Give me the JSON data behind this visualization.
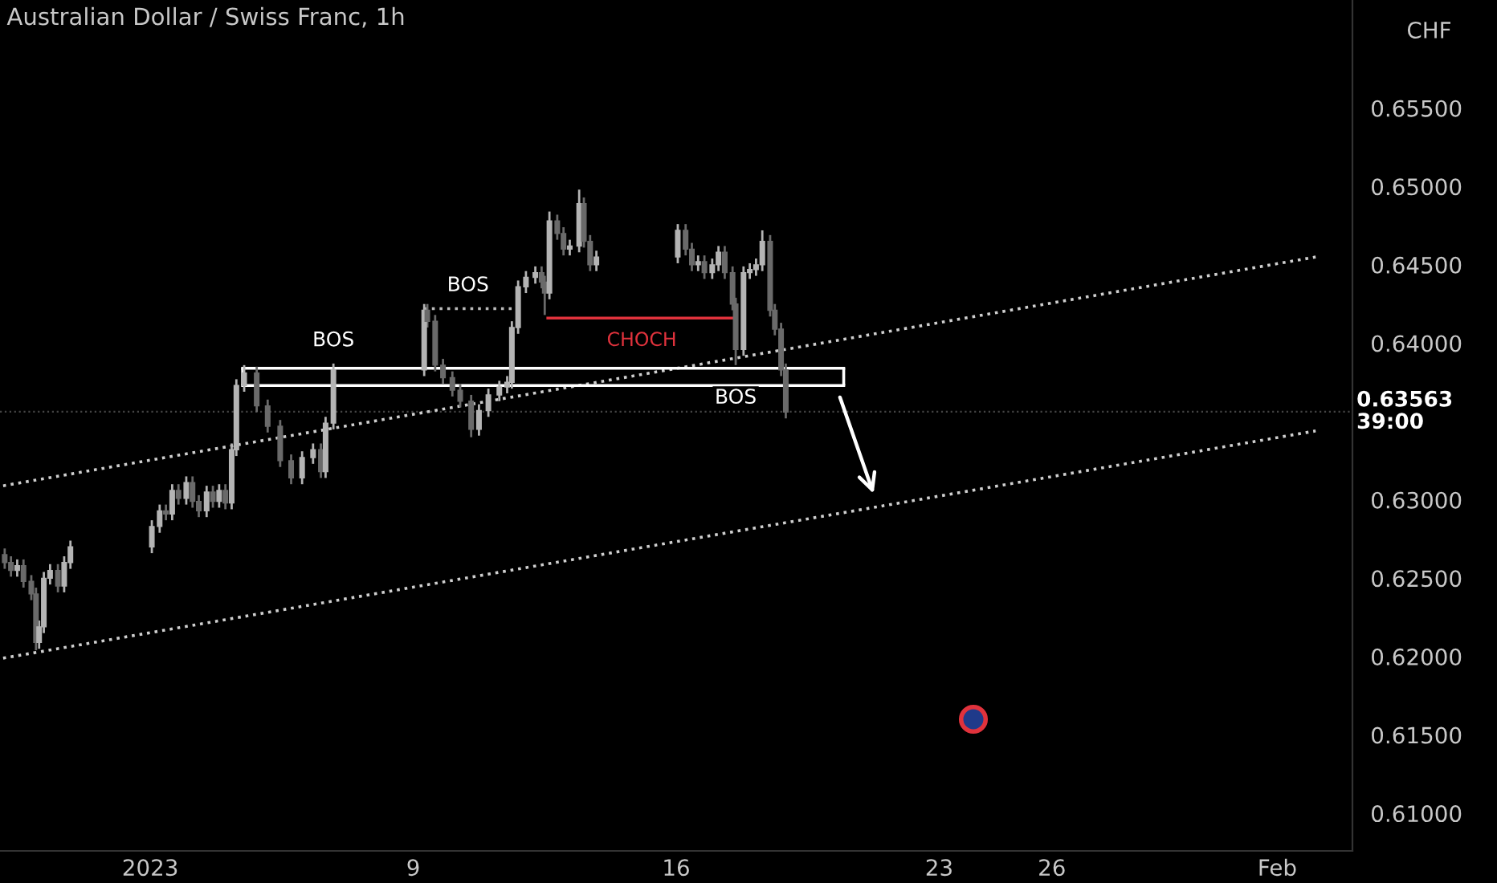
{
  "chart_data": {
    "type": "candlestick",
    "title": "Australian Dollar / Swiss Franc, 1h",
    "ylabel": "CHF",
    "x": [
      "2022-12-29T03:00",
      "2022-12-29T07:00",
      "2022-12-29T11:00",
      "2022-12-29T15:00",
      "2022-12-29T20:00",
      "2022-12-29T23:00",
      "2022-12-30T01:00",
      "2022-12-30T04:00",
      "2022-12-30T08:00",
      "2022-12-30T13:00",
      "2022-12-30T17:00",
      "2022-12-30T21:00",
      "2023-01-02T01:00",
      "2023-01-02T06:00",
      "2023-01-02T10:00",
      "2023-01-02T14:00",
      "2023-01-02T18:00",
      "2023-01-02T23:00",
      "2023-01-03T03:00",
      "2023-01-03T07:00",
      "2023-01-03T12:00",
      "2023-01-03T16:00",
      "2023-01-03T20:00",
      "2023-01-04T00:00",
      "2023-01-04T04:00",
      "2023-01-04T07:00",
      "2023-01-04T12:00",
      "2023-01-04T20:00",
      "2023-01-05T03:00",
      "2023-01-05T11:00",
      "2023-01-05T18:00",
      "2023-01-06T01:00",
      "2023-01-06T08:00",
      "2023-01-06T13:00",
      "2023-01-06T16:00",
      "2023-01-06T21:00",
      "2023-01-09T07:00",
      "2023-01-09T09:00",
      "2023-01-09T14:00",
      "2023-01-09T19:00",
      "2023-01-10T01:00",
      "2023-01-10T06:00",
      "2023-01-10T13:00",
      "2023-01-10T18:00",
      "2023-01-11T00:00",
      "2023-01-11T07:00",
      "2023-01-11T12:00",
      "2023-01-11T15:00",
      "2023-01-11T19:00",
      "2023-01-12T00:00",
      "2023-01-12T06:00",
      "2023-01-12T10:00",
      "2023-01-12T12:00",
      "2023-01-12T15:00",
      "2023-01-12T20:00",
      "2023-01-13T00:00",
      "2023-01-13T04:00",
      "2023-01-13T10:00",
      "2023-01-13T13:00",
      "2023-01-13T17:00",
      "2023-01-13T21:00",
      "2023-01-16T01:00",
      "2023-01-16T06:00",
      "2023-01-16T10:00",
      "2023-01-16T14:00",
      "2023-01-16T18:00",
      "2023-01-16T23:00",
      "2023-01-17T03:00",
      "2023-01-17T07:00",
      "2023-01-17T12:00",
      "2023-01-17T14:00",
      "2023-01-17T19:00",
      "2023-01-17T23:00",
      "2023-01-18T03:00",
      "2023-01-18T07:00",
      "2023-01-18T12:00",
      "2023-01-18T15:00",
      "2023-01-18T19:00",
      "2023-01-18T22:00"
    ],
    "ohlc": [
      [
        0.6265,
        0.6269,
        0.6256,
        0.626
      ],
      [
        0.626,
        0.6264,
        0.6251,
        0.6255
      ],
      [
        0.6255,
        0.6262,
        0.6251,
        0.6258
      ],
      [
        0.6258,
        0.6262,
        0.6244,
        0.6248
      ],
      [
        0.6248,
        0.6252,
        0.6236,
        0.624
      ],
      [
        0.624,
        0.6244,
        0.6204,
        0.6209
      ],
      [
        0.6209,
        0.6223,
        0.6205,
        0.6219
      ],
      [
        0.6219,
        0.6254,
        0.6215,
        0.625
      ],
      [
        0.625,
        0.6259,
        0.6246,
        0.6255
      ],
      [
        0.6255,
        0.6259,
        0.6241,
        0.6245
      ],
      [
        0.6245,
        0.6264,
        0.6241,
        0.626
      ],
      [
        0.626,
        0.6274,
        0.6256,
        0.627
      ],
      [
        0.627,
        0.6287,
        0.6266,
        0.6283
      ],
      [
        0.6283,
        0.6297,
        0.6279,
        0.6293
      ],
      [
        0.6293,
        0.6297,
        0.6287,
        0.6291
      ],
      [
        0.6291,
        0.631,
        0.6287,
        0.6306
      ],
      [
        0.6306,
        0.631,
        0.6297,
        0.6301
      ],
      [
        0.6301,
        0.6315,
        0.6297,
        0.6311
      ],
      [
        0.6311,
        0.6315,
        0.6295,
        0.6299
      ],
      [
        0.6299,
        0.6303,
        0.6289,
        0.6293
      ],
      [
        0.6293,
        0.6309,
        0.6289,
        0.6305
      ],
      [
        0.6305,
        0.6309,
        0.6295,
        0.6299
      ],
      [
        0.6299,
        0.631,
        0.6295,
        0.6306
      ],
      [
        0.6306,
        0.631,
        0.6294,
        0.6298
      ],
      [
        0.6298,
        0.6336,
        0.6294,
        0.6332
      ],
      [
        0.6332,
        0.6377,
        0.6328,
        0.6373
      ],
      [
        0.6373,
        0.6386,
        0.6369,
        0.6381
      ],
      [
        0.6381,
        0.6385,
        0.6356,
        0.636
      ],
      [
        0.636,
        0.6364,
        0.6343,
        0.6347
      ],
      [
        0.6347,
        0.6351,
        0.6321,
        0.6325
      ],
      [
        0.6325,
        0.6329,
        0.631,
        0.6314
      ],
      [
        0.6314,
        0.6331,
        0.631,
        0.6327
      ],
      [
        0.6327,
        0.6336,
        0.6323,
        0.6332
      ],
      [
        0.6332,
        0.6336,
        0.6314,
        0.6318
      ],
      [
        0.6318,
        0.6353,
        0.6314,
        0.6349
      ],
      [
        0.6349,
        0.6387,
        0.6345,
        0.6383
      ],
      [
        0.6383,
        0.6425,
        0.6379,
        0.6421
      ],
      [
        0.6421,
        0.6425,
        0.641,
        0.6414
      ],
      [
        0.6414,
        0.6418,
        0.6382,
        0.6386
      ],
      [
        0.6386,
        0.639,
        0.6374,
        0.6378
      ],
      [
        0.6378,
        0.6382,
        0.6366,
        0.637
      ],
      [
        0.637,
        0.6374,
        0.6359,
        0.6363
      ],
      [
        0.6363,
        0.6367,
        0.634,
        0.6345
      ],
      [
        0.6345,
        0.6361,
        0.6341,
        0.6357
      ],
      [
        0.6357,
        0.6371,
        0.6353,
        0.6367
      ],
      [
        0.6367,
        0.6376,
        0.6363,
        0.6372
      ],
      [
        0.6372,
        0.6379,
        0.6368,
        0.6375
      ],
      [
        0.6375,
        0.6414,
        0.6371,
        0.641
      ],
      [
        0.641,
        0.644,
        0.6406,
        0.6436
      ],
      [
        0.6436,
        0.6446,
        0.6432,
        0.6442
      ],
      [
        0.6442,
        0.6449,
        0.6438,
        0.6445
      ],
      [
        0.6445,
        0.6449,
        0.6435,
        0.6439
      ],
      [
        0.6439,
        0.6443,
        0.6418,
        0.6432
      ],
      [
        0.6432,
        0.6484,
        0.6428,
        0.6478
      ],
      [
        0.6478,
        0.6482,
        0.6466,
        0.647
      ],
      [
        0.647,
        0.6474,
        0.6456,
        0.646
      ],
      [
        0.646,
        0.6466,
        0.6456,
        0.6462
      ],
      [
        0.6462,
        0.6498,
        0.6458,
        0.6489
      ],
      [
        0.6489,
        0.6493,
        0.6461,
        0.6465
      ],
      [
        0.6465,
        0.6469,
        0.6446,
        0.645
      ],
      [
        0.645,
        0.6459,
        0.6446,
        0.6455
      ],
      [
        0.6455,
        0.6476,
        0.6451,
        0.6472
      ],
      [
        0.6472,
        0.6476,
        0.6456,
        0.646
      ],
      [
        0.646,
        0.6464,
        0.6446,
        0.645
      ],
      [
        0.645,
        0.6456,
        0.6446,
        0.6452
      ],
      [
        0.6452,
        0.6456,
        0.6441,
        0.6445
      ],
      [
        0.6445,
        0.6454,
        0.6441,
        0.645
      ],
      [
        0.645,
        0.6462,
        0.6446,
        0.6458
      ],
      [
        0.6458,
        0.6462,
        0.6441,
        0.6445
      ],
      [
        0.6445,
        0.6449,
        0.6421,
        0.6425
      ],
      [
        0.6425,
        0.6429,
        0.6386,
        0.6396
      ],
      [
        0.6396,
        0.6449,
        0.6392,
        0.6445
      ],
      [
        0.6445,
        0.6451,
        0.6441,
        0.6447
      ],
      [
        0.6447,
        0.6454,
        0.6443,
        0.645
      ],
      [
        0.645,
        0.6472,
        0.6446,
        0.6465
      ],
      [
        0.6465,
        0.6469,
        0.6417,
        0.6421
      ],
      [
        0.6421,
        0.6425,
        0.6405,
        0.6409
      ],
      [
        0.6409,
        0.6413,
        0.6379,
        0.6383
      ],
      [
        0.6383,
        0.6387,
        0.6352,
        0.6356
      ]
    ],
    "colors": [
      "#6a6a6a",
      "#6a6a6a",
      "#b4b4b4",
      "#6a6a6a",
      "#6a6a6a",
      "#6a6a6a",
      "#b4b4b4",
      "#b4b4b4",
      "#b4b4b4",
      "#6a6a6a",
      "#b4b4b4",
      "#b4b4b4",
      "#b4b4b4",
      "#b4b4b4",
      "#6a6a6a",
      "#b4b4b4",
      "#6a6a6a",
      "#b4b4b4",
      "#6a6a6a",
      "#6a6a6a",
      "#b4b4b4",
      "#6a6a6a",
      "#b4b4b4",
      "#6a6a6a",
      "#b4b4b4",
      "#b4b4b4",
      "#b4b4b4",
      "#6a6a6a",
      "#6a6a6a",
      "#6a6a6a",
      "#6a6a6a",
      "#b4b4b4",
      "#b4b4b4",
      "#6a6a6a",
      "#b4b4b4",
      "#b4b4b4",
      "#b4b4b4",
      "#6a6a6a",
      "#6a6a6a",
      "#6a6a6a",
      "#6a6a6a",
      "#6a6a6a",
      "#6a6a6a",
      "#b4b4b4",
      "#b4b4b4",
      "#b4b4b4",
      "#b4b4b4",
      "#b4b4b4",
      "#b4b4b4",
      "#b4b4b4",
      "#b4b4b4",
      "#6a6a6a",
      "#6a6a6a",
      "#b4b4b4",
      "#6a6a6a",
      "#6a6a6a",
      "#b4b4b4",
      "#b4b4b4",
      "#6a6a6a",
      "#6a6a6a",
      "#b4b4b4",
      "#b4b4b4",
      "#6a6a6a",
      "#6a6a6a",
      "#b4b4b4",
      "#6a6a6a",
      "#b4b4b4",
      "#b4b4b4",
      "#6a6a6a",
      "#6a6a6a",
      "#6a6a6a",
      "#b4b4b4",
      "#b4b4b4",
      "#b4b4b4",
      "#b4b4b4",
      "#6a6a6a",
      "#6a6a6a",
      "#6a6a6a",
      "#6a6a6a"
    ],
    "series": [
      {
        "type": "line",
        "color": "#cfcfcf",
        "line_style": "dotted",
        "x": [
          "2022-12-29T02:00",
          "2023-02-02T00:30"
        ],
        "values": [
          0.6309,
          0.6455
        ]
      },
      {
        "type": "line",
        "color": "#cfcfcf",
        "line_style": "dotted",
        "x": [
          "2022-12-29T02:00",
          "2023-02-02T00:30"
        ],
        "values": [
          0.6199,
          0.6344
        ]
      },
      {
        "type": "line",
        "color": "#bbbbbb",
        "line_style": "dotted",
        "x": [
          "2023-01-09T07:00",
          "2023-01-11T15:00"
        ],
        "values": [
          0.6422,
          0.6422
        ]
      },
      {
        "type": "line",
        "color": "#e0323c",
        "line_style": "solid",
        "x": [
          "2023-01-12T14:00",
          "2023-01-17T14:00"
        ],
        "values": [
          0.6416,
          0.6416
        ]
      },
      {
        "type": "line",
        "color": "#ffffff",
        "line_style": "solid",
        "x": [
          "2023-01-04T11:00",
          "2023-01-20T11:00"
        ],
        "values": [
          0.6384,
          0.6384
        ]
      },
      {
        "type": "line",
        "color": "#ffffff",
        "line_style": "solid",
        "x": [
          "2023-01-04T11:00",
          "2023-01-20T11:00"
        ],
        "values": [
          0.6373,
          0.6373
        ]
      }
    ],
    "annotations": [
      "BOS",
      "BOS",
      "CHOCH",
      "BOS"
    ],
    "ref_lines": [
      {
        "axis": "y",
        "value": 0.63563,
        "label": "0.63563\n39:00",
        "color": "#444444",
        "line_style": "dotted"
      }
    ],
    "xlim": [
      "2022-12-29T00:00",
      "2023-02-03T00:00"
    ],
    "ylim": [
      0.6076,
      0.6619
    ],
    "xticks": [
      {
        "value": "2023-01-02",
        "label": "2023"
      },
      {
        "value": "2023-01-09",
        "label": "9"
      },
      {
        "value": "2023-01-16",
        "label": "16"
      },
      {
        "value": "2023-01-23",
        "label": "23"
      },
      {
        "value": "2023-01-26",
        "label": "26"
      },
      {
        "value": "2023-02-01",
        "label": "Feb"
      }
    ],
    "yticks": [
      {
        "value": 0.61,
        "label": "0.61000"
      },
      {
        "value": 0.615,
        "label": "0.61500"
      },
      {
        "value": 0.62,
        "label": "0.62000"
      },
      {
        "value": 0.625,
        "label": "0.62500"
      },
      {
        "value": 0.63,
        "label": "0.63000"
      },
      {
        "value": 0.64,
        "label": "0.64000"
      },
      {
        "value": 0.645,
        "label": "0.64500"
      },
      {
        "value": 0.65,
        "label": "0.65000"
      },
      {
        "value": 0.655,
        "label": "0.65500"
      }
    ],
    "grid": false,
    "legend": false
  }
}
